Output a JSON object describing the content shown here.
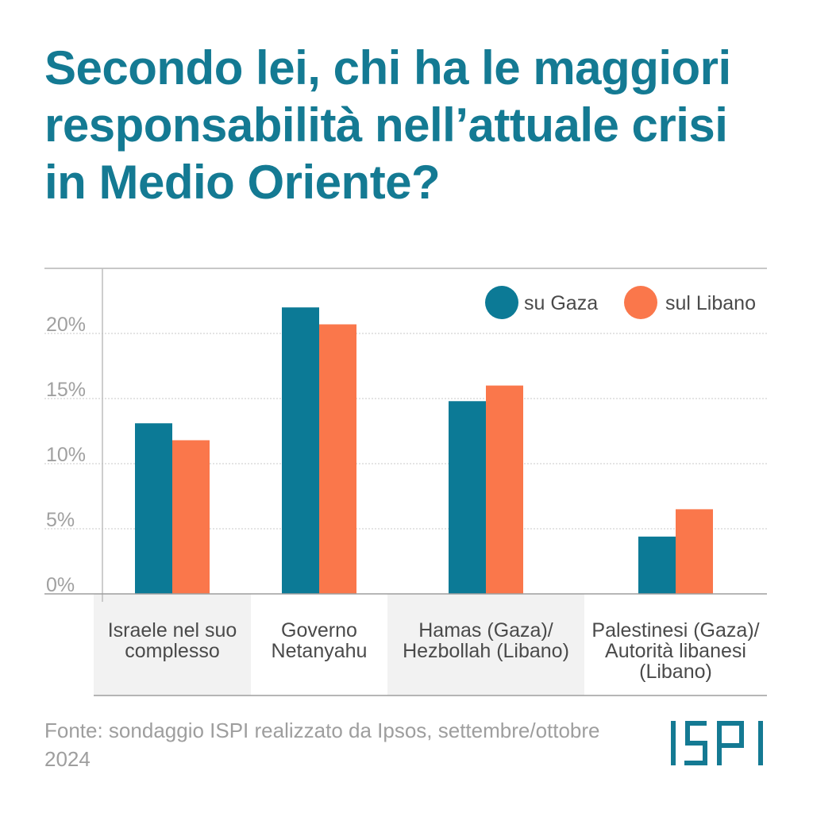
{
  "title": "Secondo lei, chi ha le maggiori responsabilità nell’attuale crisi in Medio Oriente?",
  "source": "Fonte: sondaggio ISPI realizzato da Ipsos, settembre/ottobre 2024",
  "logo_text": "ISPI",
  "colors": {
    "title": "#147a93",
    "gaza": "#0c7a96",
    "libano": "#fa774b",
    "band": "#f2f2f2",
    "grid": "#c8c8c8",
    "axis_text": "#a0a0a0",
    "category_text": "#4a4a4a"
  },
  "chart_data": {
    "type": "bar",
    "title": "Secondo lei, chi ha le maggiori responsabilità nell’attuale crisi in Medio Oriente?",
    "categories": [
      [
        "Israele nel suo",
        "complesso"
      ],
      [
        "Governo",
        "Netanyahu"
      ],
      [
        "Hamas (Gaza)/",
        "Hezbollah (Libano)"
      ],
      [
        "Palestinesi (Gaza)/",
        "Autorità libanesi",
        "(Libano)"
      ]
    ],
    "series": [
      {
        "name": "su Gaza",
        "color": "#0c7a96",
        "values": [
          13.1,
          22.0,
          14.8,
          4.4
        ]
      },
      {
        "name": "sul Libano",
        "color": "#fa774b",
        "values": [
          11.8,
          20.7,
          16.0,
          6.5
        ]
      }
    ],
    "y_ticks": [
      "0%",
      "5%",
      "10%",
      "15%",
      "20%"
    ],
    "y_tick_values": [
      0,
      5,
      10,
      15,
      20
    ],
    "ylim": [
      0,
      25
    ],
    "xlabel": "",
    "ylabel": "",
    "grid": true,
    "legend_position": "top-right"
  }
}
